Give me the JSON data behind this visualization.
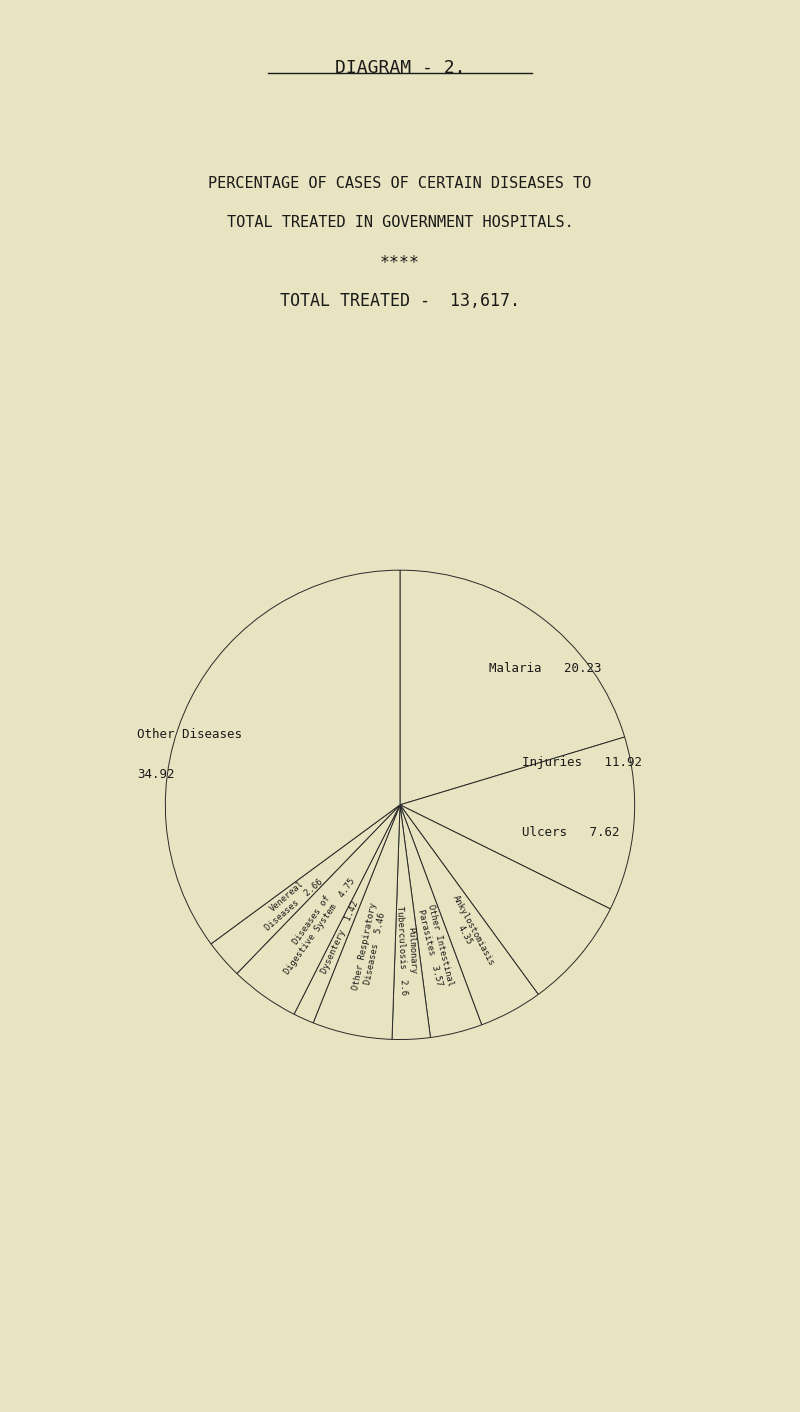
{
  "diagram_title": "DIAGRAM - 2.",
  "title_line1": "PERCENTAGE OF CASES OF CERTAIN DISEASES TO",
  "title_line2": "TOTAL TREATED IN GOVERNMENT HOSPITALS.",
  "stars": "****",
  "total_treated_label": "TOTAL TREATED -  13,617.",
  "background_color": "#e8e3c0",
  "slices": [
    {
      "label": "Malaria",
      "value": 20.23,
      "display": "Malaria  20.23"
    },
    {
      "label": "Injuries",
      "value": 11.92,
      "display": "Injuries  11.92"
    },
    {
      "label": "Ulcers",
      "value": 7.62,
      "display": "Ulcers  7.62"
    },
    {
      "label": "Ankylostomiasis",
      "value": 4.35,
      "display": "Ankylostomiasis\n4.35"
    },
    {
      "label": "Other Intestinal\nParasites",
      "value": 3.57,
      "display": "Other Intestinal\nParasites  3.57"
    },
    {
      "label": "Pulmonary\nTuberculosis",
      "value": 2.6,
      "display": "Pulmonary\nTuberculosis  2.60"
    },
    {
      "label": "Other Respiratory\nDiseases",
      "value": 5.46,
      "display": "Other Respiratory\nDiseases  5.46"
    },
    {
      "label": "Dysentery",
      "value": 1.42,
      "display": "Dysentery  1.42"
    },
    {
      "label": "Diseases of\nDigestive System",
      "value": 4.75,
      "display": "Diseases of\nDigestive System  4.75"
    },
    {
      "label": "Venereal\nDiseases",
      "value": 2.66,
      "display": "Venereal\nDiseases  2.66"
    },
    {
      "label": "Other Diseases",
      "value": 34.92,
      "display": "Other Diseases\n34.92"
    }
  ],
  "edge_color": "#2a2a2a",
  "text_color": "#1a1a1a",
  "font_size_header": 12,
  "font_size_label": 9,
  "font_size_small": 7
}
